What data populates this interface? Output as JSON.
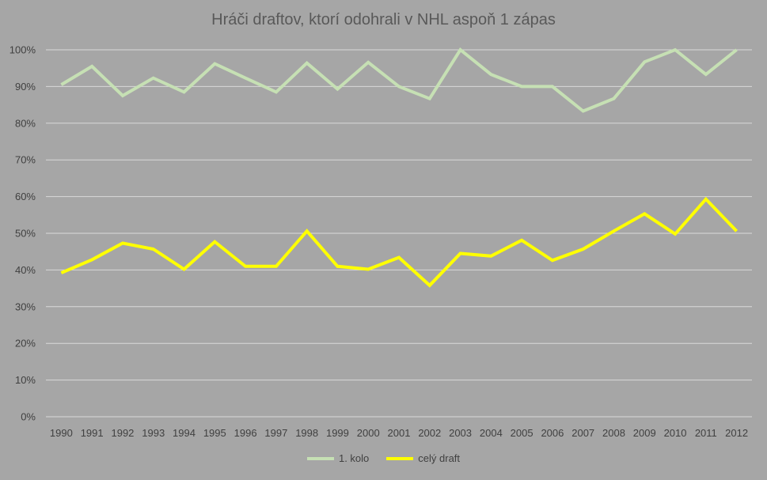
{
  "chart_data": {
    "type": "line",
    "title": "Hráči draftov, ktorí odohrali v NHL aspoň 1 zápas",
    "xlabel": "",
    "ylabel": "",
    "ylim": [
      0,
      100
    ],
    "y_ticks": [
      "0%",
      "10%",
      "20%",
      "30%",
      "40%",
      "50%",
      "60%",
      "70%",
      "80%",
      "90%",
      "100%"
    ],
    "categories": [
      "1990",
      "1991",
      "1992",
      "1993",
      "1994",
      "1995",
      "1996",
      "1997",
      "1998",
      "1999",
      "2000",
      "2001",
      "2002",
      "2003",
      "2004",
      "2005",
      "2006",
      "2007",
      "2008",
      "2009",
      "2010",
      "2011",
      "2012"
    ],
    "series": [
      {
        "name": "1. kolo",
        "color": "#c6e0b4",
        "values": [
          90.5,
          95.5,
          87.5,
          92.3,
          88.5,
          96.2,
          92.3,
          88.5,
          96.4,
          89.3,
          96.6,
          90,
          86.7,
          100,
          93.3,
          90,
          90,
          83.3,
          86.7,
          96.7,
          100,
          93.3,
          100
        ]
      },
      {
        "name": "celý draft",
        "color": "#ffff00",
        "values": [
          39.2,
          42.8,
          47.3,
          45.7,
          40.2,
          47.7,
          41,
          41,
          50.6,
          41,
          40.2,
          43.4,
          35.8,
          44.5,
          43.8,
          48.1,
          42.6,
          45.7,
          50.6,
          55.3,
          49.8,
          59.3,
          50.6
        ]
      }
    ],
    "grid": true,
    "legend_position": "bottom"
  }
}
